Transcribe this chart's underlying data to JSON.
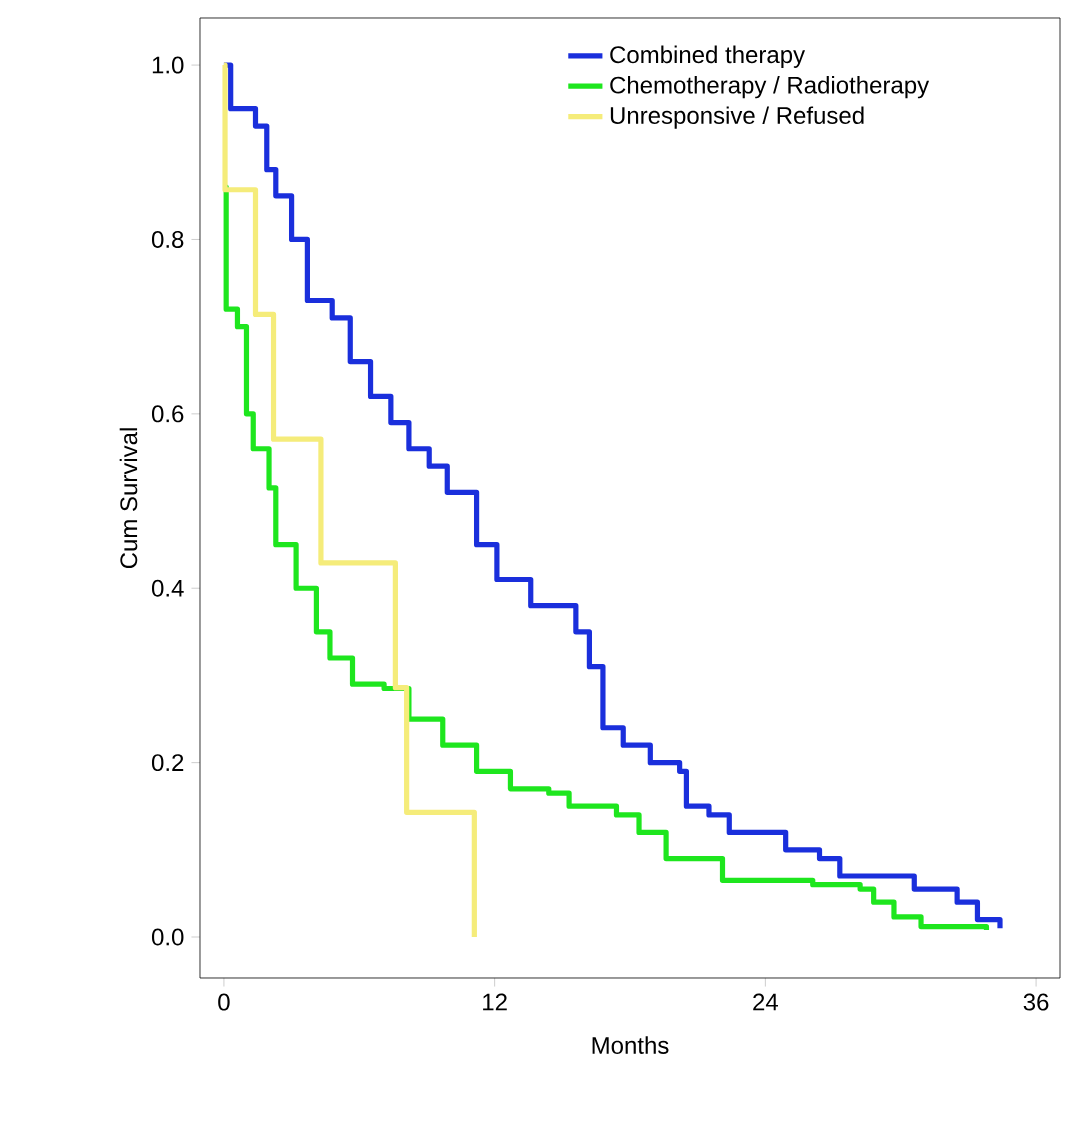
{
  "chart_data": {
    "type": "step",
    "xlabel": "Months",
    "ylabel": "Cum Survival",
    "xlim": [
      -1.06,
      37.06
    ],
    "ylim": [
      -0.047,
      1.054
    ],
    "xticks": [
      0,
      12,
      24,
      36
    ],
    "yticks": [
      {
        "value": 0,
        "label": "0.0"
      },
      {
        "value": 0.2,
        "label": "0.2"
      },
      {
        "value": 0.4,
        "label": "0.4"
      },
      {
        "value": 0.6,
        "label": "0.6"
      },
      {
        "value": 0.8,
        "label": "0.8"
      },
      {
        "value": 1.0,
        "label": "1.0"
      }
    ],
    "grid": false,
    "legend": "top right",
    "series": [
      {
        "name": "Combined therapy",
        "color": "#1a2fdc",
        "x": [
          0,
          0.3,
          1.4,
          1.9,
          2.3,
          3.0,
          3.7,
          4.8,
          5.6,
          6.5,
          7.4,
          8.2,
          9.1,
          9.9,
          11.2,
          12.1,
          13.6,
          15.6,
          16.2,
          16.8,
          17.7,
          18.9,
          20.2,
          20.5,
          21.5,
          22.4,
          24.9,
          26.4,
          27.3,
          30.6,
          32.5,
          33.4,
          34.4
        ],
        "values": [
          1.0,
          0.95,
          0.93,
          0.88,
          0.85,
          0.8,
          0.73,
          0.71,
          0.66,
          0.62,
          0.59,
          0.56,
          0.54,
          0.51,
          0.45,
          0.41,
          0.38,
          0.35,
          0.31,
          0.24,
          0.22,
          0.2,
          0.19,
          0.15,
          0.14,
          0.12,
          0.1,
          0.09,
          0.07,
          0.055,
          0.04,
          0.02,
          0.01
        ]
      },
      {
        "name": "Chemotherapy / Radiotherapy",
        "color": "#1ee61e",
        "x": [
          0,
          0.1,
          0.6,
          1.0,
          1.3,
          2.0,
          2.3,
          3.2,
          4.1,
          4.7,
          5.7,
          7.1,
          8.2,
          9.7,
          11.2,
          12.7,
          14.4,
          15.3,
          17.4,
          18.4,
          19.6,
          22.1,
          26.1,
          28.2,
          28.8,
          29.7,
          30.9,
          33.8
        ],
        "values": [
          0.86,
          0.72,
          0.7,
          0.6,
          0.56,
          0.515,
          0.45,
          0.4,
          0.35,
          0.32,
          0.29,
          0.285,
          0.25,
          0.22,
          0.19,
          0.17,
          0.165,
          0.15,
          0.14,
          0.12,
          0.09,
          0.065,
          0.06,
          0.055,
          0.04,
          0.023,
          0.012,
          0.008
        ]
      },
      {
        "name": "Unresponsive / Refused",
        "color": "#f5ec7a",
        "x": [
          0,
          0.05,
          1.4,
          2.2,
          4.3,
          7.6,
          8.1,
          11.1
        ],
        "values": [
          1.0,
          0.857,
          0.714,
          0.571,
          0.429,
          0.286,
          0.143,
          0.0
        ]
      }
    ]
  }
}
